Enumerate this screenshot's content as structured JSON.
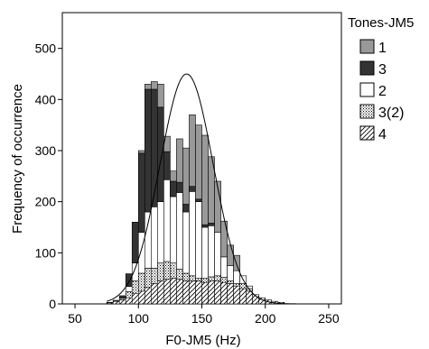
{
  "chart_data": {
    "type": "bar",
    "stacked": true,
    "xlabel": "F0-JM5 (Hz)",
    "ylabel": "Frequency of occurrence",
    "xlim": [
      40,
      260
    ],
    "ylim": [
      0,
      570
    ],
    "xticks": [
      50,
      100,
      150,
      200,
      250
    ],
    "yticks": [
      0,
      100,
      200,
      300,
      400,
      500
    ],
    "bin_width": 5,
    "bin_left_edges": [
      75,
      80,
      85,
      90,
      95,
      100,
      105,
      110,
      115,
      120,
      125,
      130,
      135,
      140,
      145,
      150,
      155,
      160,
      165,
      170,
      175,
      180,
      185,
      190,
      195,
      200,
      205,
      210
    ],
    "legend": {
      "title": "Tones-JM5",
      "placement": "right",
      "items": [
        {
          "label": "1",
          "fill": "#999999"
        },
        {
          "label": "3",
          "fill": "#333333"
        },
        {
          "label": "2",
          "fill": "#ffffff"
        },
        {
          "label": "3(2)",
          "fill": "crosshatch"
        },
        {
          "label": "4",
          "fill": "diagonal"
        }
      ]
    },
    "stack_order": [
      "4",
      "3(2)",
      "2",
      "3",
      "1"
    ],
    "series": [
      {
        "name": "4",
        "fill": "diagonal",
        "values": [
          2,
          5,
          8,
          12,
          20,
          25,
          32,
          40,
          45,
          48,
          50,
          48,
          45,
          45,
          45,
          42,
          45,
          45,
          42,
          40,
          35,
          30,
          25,
          18,
          12,
          8,
          5,
          3
        ]
      },
      {
        "name": "3(2)",
        "fill": "crosshatch",
        "values": [
          0,
          0,
          3,
          12,
          25,
          35,
          38,
          30,
          35,
          35,
          30,
          20,
          15,
          10,
          5,
          8,
          8,
          10,
          10,
          5,
          5,
          10,
          5,
          0,
          0,
          0,
          0,
          0
        ]
      },
      {
        "name": "2",
        "fill": "#ffffff",
        "values": [
          0,
          0,
          0,
          10,
          35,
          80,
          110,
          120,
          120,
          160,
          130,
          150,
          120,
          165,
          150,
          100,
          100,
          85,
          40,
          30,
          25,
          15,
          5,
          0,
          0,
          0,
          0,
          0
        ]
      },
      {
        "name": "3",
        "fill": "#333333",
        "values": [
          1,
          2,
          5,
          25,
          80,
          155,
          240,
          230,
          185,
          55,
          30,
          20,
          15,
          10,
          5,
          5,
          5,
          0,
          0,
          0,
          0,
          0,
          0,
          0,
          0,
          0,
          0,
          0
        ]
      },
      {
        "name": "1",
        "fill": "#999999",
        "values": [
          0,
          0,
          0,
          0,
          0,
          5,
          10,
          15,
          45,
          30,
          20,
          85,
          110,
          140,
          145,
          175,
          130,
          100,
          70,
          40,
          30,
          0,
          0,
          0,
          0,
          0,
          0,
          0
        ]
      }
    ],
    "normal_curve": {
      "mean": 138,
      "sd": 21,
      "peak": 450
    }
  }
}
